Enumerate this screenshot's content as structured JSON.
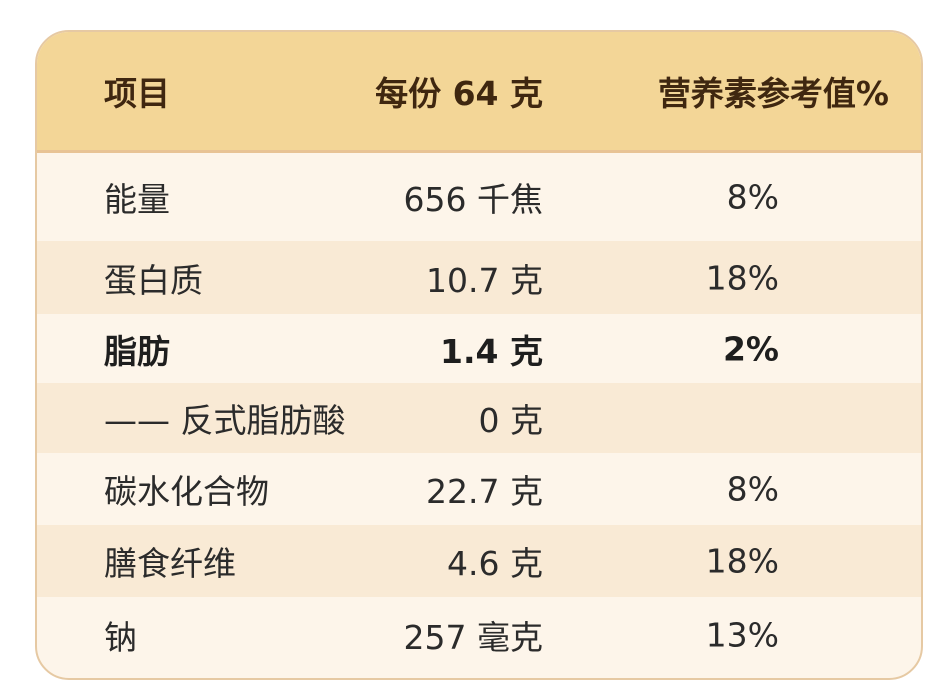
{
  "header": {
    "item": "项目",
    "per_serving": "每份 64 克",
    "nrv": "营养素参考值%"
  },
  "rows": [
    {
      "name": "能量",
      "amount": "656 千焦",
      "nrv": "8%"
    },
    {
      "name": "蛋白质",
      "amount": "10.7 克",
      "nrv": "18%"
    },
    {
      "name": "脂肪",
      "amount": "1.4 克",
      "nrv": "2%"
    },
    {
      "name": "—— 反式脂肪酸",
      "amount": "0 克",
      "nrv": ""
    },
    {
      "name": "碳水化合物",
      "amount": "22.7 克",
      "nrv": "8%"
    },
    {
      "name": "膳食纤维",
      "amount": "4.6 克",
      "nrv": "18%"
    },
    {
      "name": "钠",
      "amount": "257 毫克",
      "nrv": "13%"
    }
  ],
  "colors": {
    "header_bg": "#f3d697",
    "row_light": "#fdf5ea",
    "row_dark": "#f9ead5",
    "border": "#e6c9a3"
  }
}
